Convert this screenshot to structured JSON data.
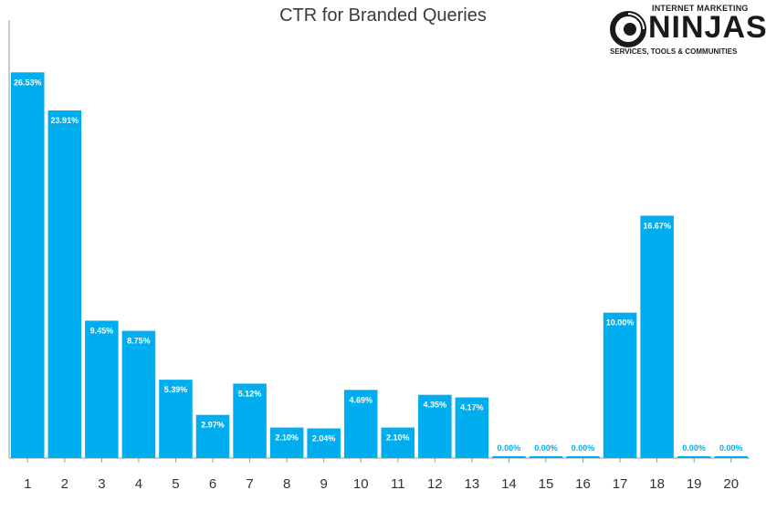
{
  "chart_data": {
    "type": "bar",
    "title": "CTR for Branded Queries",
    "xlabel": "",
    "ylabel": "",
    "categories": [
      "1",
      "2",
      "3",
      "4",
      "5",
      "6",
      "7",
      "8",
      "9",
      "10",
      "11",
      "12",
      "13",
      "14",
      "15",
      "16",
      "17",
      "18",
      "19",
      "20"
    ],
    "values": [
      26.53,
      23.91,
      9.45,
      8.75,
      5.39,
      2.97,
      5.12,
      2.1,
      2.04,
      4.69,
      2.1,
      4.35,
      4.17,
      0.0,
      0.0,
      0.0,
      10.0,
      16.67,
      0.0,
      0.0
    ],
    "data_labels": [
      "26.53%",
      "23.91%",
      "9.45%",
      "8.75%",
      "5.39%",
      "2.97%",
      "5.12%",
      "2.10%",
      "2.04%",
      "4.69%",
      "2.10%",
      "4.35%",
      "4.17%",
      "0.00%",
      "0.00%",
      "0.00%",
      "10.00%",
      "16.67%",
      "0.00%",
      "0.00%"
    ],
    "ylim": [
      0,
      30
    ],
    "grid": false,
    "legend": "none",
    "bar_color": "#00aeef"
  },
  "logo": {
    "top_text": "INTERNET MARKETING",
    "main_text": "NINJAS",
    "sub_text": "SERVICES, TOOLS & COMMUNITIES"
  }
}
